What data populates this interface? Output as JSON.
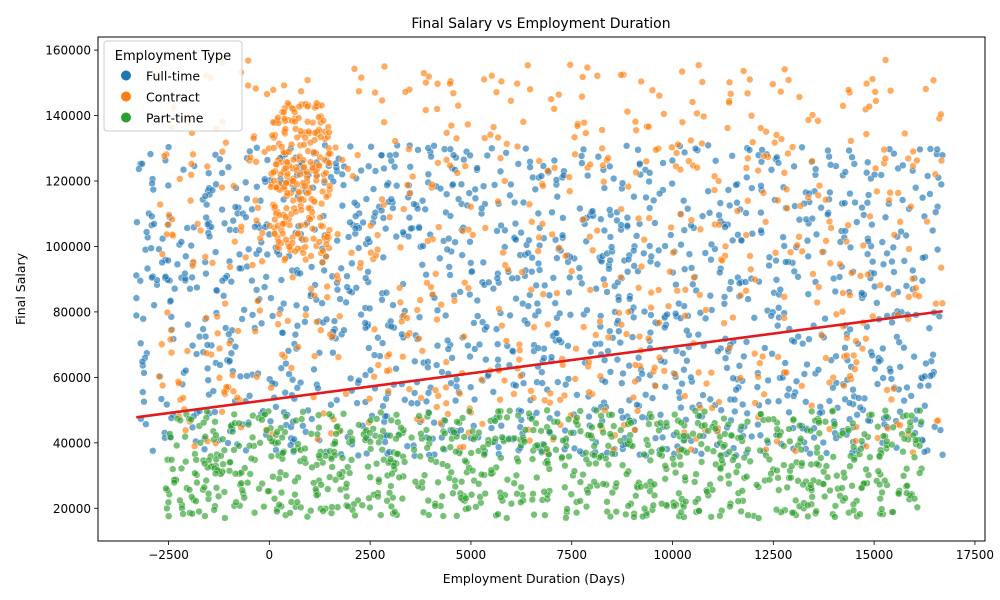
{
  "chart_data": {
    "type": "scatter",
    "title": "Final Salary vs Employment Duration",
    "xlabel": "Employment Duration (Days)",
    "ylabel": "Final Salary",
    "xlim": [
      -4250,
      17750
    ],
    "ylim": [
      10000,
      164000
    ],
    "x_ticks": [
      -2500,
      0,
      2500,
      5000,
      7500,
      10000,
      12500,
      15000,
      17500
    ],
    "x_tick_labels": [
      "−2500",
      "0",
      "2500",
      "5000",
      "7500",
      "10000",
      "12500",
      "15000",
      "17500"
    ],
    "y_ticks": [
      20000,
      40000,
      60000,
      80000,
      100000,
      120000,
      140000,
      160000
    ],
    "y_tick_labels": [
      "20000",
      "40000",
      "60000",
      "80000",
      "100000",
      "120000",
      "140000",
      "160000"
    ],
    "grid": false,
    "legend": {
      "title": "Employment Type",
      "placement": "top-left"
    },
    "series": [
      {
        "name": "Full-time",
        "color": "#1f77b4",
        "clusters": [
          {
            "x": [
              -3300,
              16700
            ],
            "y": [
              36000,
              131000
            ],
            "share": 1.0
          }
        ]
      },
      {
        "name": "Contract",
        "color": "#ff7f0e",
        "clusters": [
          {
            "x": [
              -2800,
              16700
            ],
            "y": [
              37000,
              157000
            ],
            "share": 0.75
          },
          {
            "x": [
              0,
              1500
            ],
            "y": [
              95000,
              144000
            ],
            "share": 0.25
          }
        ]
      },
      {
        "name": "Part-time",
        "color": "#2ca02c",
        "clusters": [
          {
            "x": [
              -2600,
              16200
            ],
            "y": [
              17000,
              50000
            ],
            "share": 1.0
          }
        ]
      }
    ],
    "trend_line": {
      "color": "#e31a1c",
      "x": [
        -3300,
        16700
      ],
      "y": [
        47800,
        80200
      ]
    }
  }
}
